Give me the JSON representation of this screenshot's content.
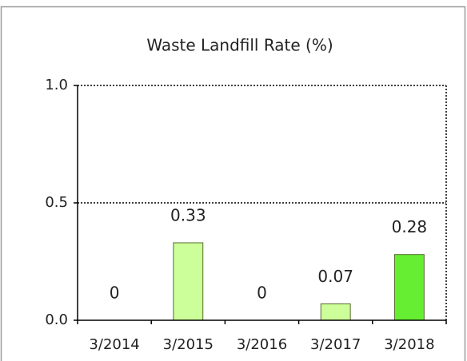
{
  "chart_data": {
    "type": "bar",
    "title": "Waste Landfill Rate (%)",
    "categories": [
      "3/2014",
      "3/2015",
      "3/2016",
      "3/2017",
      "3/2018"
    ],
    "values": [
      0,
      0.33,
      0,
      0.07,
      0.28
    ],
    "colors": [
      "#ccff99",
      "#ccff99",
      "#ccff99",
      "#ccff99",
      "#66ee33"
    ],
    "ylim": [
      0,
      1
    ],
    "yticks": [
      {
        "value": 0,
        "label": "0.0"
      },
      0.5,
      {
        "value": 1,
        "label": "1.0"
      }
    ],
    "grid": true
  }
}
